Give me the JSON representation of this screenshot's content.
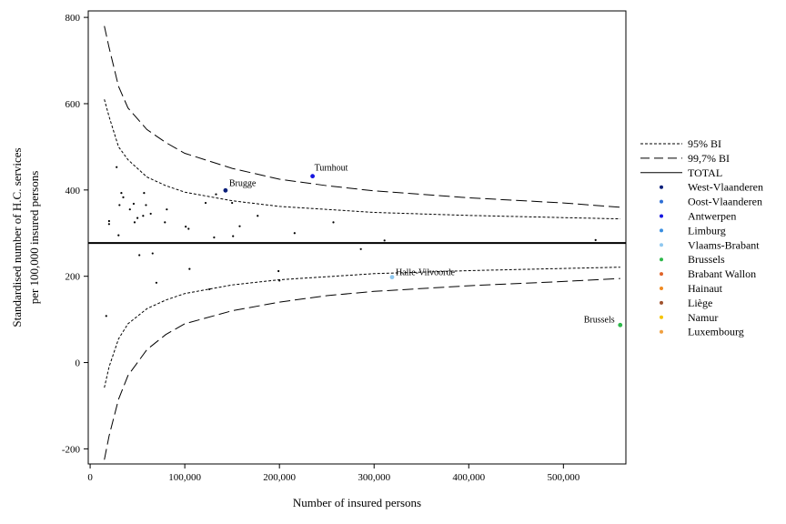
{
  "chart_data": {
    "type": "scatter",
    "title": "",
    "xlabel": "Number of insured persons",
    "ylabel_lines": [
      "Standardised number of H.C. services",
      "per 100,000 insured persons"
    ],
    "xlim": [
      -2000,
      566000
    ],
    "ylim": [
      -235,
      815
    ],
    "xticks": [
      0,
      100000,
      200000,
      300000,
      400000,
      500000
    ],
    "xtick_labels": [
      "0",
      "100,000",
      "200,000",
      "300,000",
      "400,000",
      "500,000"
    ],
    "yticks": [
      -200,
      0,
      200,
      400,
      600,
      800
    ],
    "ytick_labels": [
      "-200",
      "0",
      "200",
      "400",
      "600",
      "800"
    ],
    "grid": false,
    "legend_position": "right",
    "total": 277,
    "legend": [
      {
        "label": "95% BI",
        "kind": "dotted",
        "color": "#000000"
      },
      {
        "label": "99,7% BI",
        "kind": "dashed",
        "color": "#000000"
      },
      {
        "label": "TOTAL",
        "kind": "solid",
        "color": "#000000"
      },
      {
        "label": "West-Vlaanderen",
        "kind": "dot",
        "color": "#0a1f7a"
      },
      {
        "label": "Oost-Vlaanderen",
        "kind": "dot",
        "color": "#2e6fd6"
      },
      {
        "label": "Antwerpen",
        "kind": "dot",
        "color": "#1515e0"
      },
      {
        "label": "Limburg",
        "kind": "dot",
        "color": "#3a8fe0"
      },
      {
        "label": "Vlaams-Brabant",
        "kind": "dot",
        "color": "#8fc8f0"
      },
      {
        "label": "Brussels",
        "kind": "dot",
        "color": "#2db84a"
      },
      {
        "label": "Brabant Wallon",
        "kind": "dot",
        "color": "#e0642a"
      },
      {
        "label": "Hainaut",
        "kind": "dot",
        "color": "#f08a20"
      },
      {
        "label": "Liège",
        "kind": "dot",
        "color": "#a0522d"
      },
      {
        "label": "Namur",
        "kind": "dot",
        "color": "#f5c400"
      },
      {
        "label": "Luxembourg",
        "kind": "dot",
        "color": "#f0a040"
      }
    ],
    "limits": [
      {
        "name": "95% BI upper",
        "style": "dotted",
        "points": [
          [
            15000,
            610
          ],
          [
            20000,
            570
          ],
          [
            30000,
            500
          ],
          [
            40000,
            470
          ],
          [
            60000,
            430
          ],
          [
            80000,
            410
          ],
          [
            100000,
            395
          ],
          [
            150000,
            375
          ],
          [
            200000,
            362
          ],
          [
            250000,
            355
          ],
          [
            300000,
            348
          ],
          [
            400000,
            341
          ],
          [
            500000,
            336
          ],
          [
            560000,
            333
          ]
        ]
      },
      {
        "name": "95% BI lower",
        "style": "dotted",
        "points": [
          [
            15000,
            -58
          ],
          [
            20000,
            -10
          ],
          [
            30000,
            55
          ],
          [
            40000,
            90
          ],
          [
            60000,
            125
          ],
          [
            80000,
            145
          ],
          [
            100000,
            160
          ],
          [
            150000,
            180
          ],
          [
            200000,
            192
          ],
          [
            250000,
            199
          ],
          [
            300000,
            206
          ],
          [
            400000,
            213
          ],
          [
            500000,
            218
          ],
          [
            560000,
            221
          ]
        ]
      },
      {
        "name": "99,7% BI upper",
        "style": "dashed",
        "points": [
          [
            15000,
            780
          ],
          [
            20000,
            730
          ],
          [
            30000,
            640
          ],
          [
            40000,
            590
          ],
          [
            60000,
            540
          ],
          [
            80000,
            510
          ],
          [
            100000,
            485
          ],
          [
            150000,
            450
          ],
          [
            200000,
            425
          ],
          [
            250000,
            410
          ],
          [
            300000,
            398
          ],
          [
            400000,
            382
          ],
          [
            500000,
            370
          ],
          [
            560000,
            360
          ]
        ]
      },
      {
        "name": "99,7% BI lower",
        "style": "dashed",
        "points": [
          [
            15000,
            -225
          ],
          [
            20000,
            -170
          ],
          [
            30000,
            -85
          ],
          [
            40000,
            -30
          ],
          [
            60000,
            30
          ],
          [
            80000,
            65
          ],
          [
            100000,
            90
          ],
          [
            150000,
            120
          ],
          [
            200000,
            140
          ],
          [
            250000,
            155
          ],
          [
            300000,
            165
          ],
          [
            400000,
            178
          ],
          [
            500000,
            188
          ],
          [
            560000,
            195
          ]
        ]
      }
    ],
    "points": [
      {
        "x": 17000,
        "y": 108,
        "c": "#000000"
      },
      {
        "x": 20000,
        "y": 328,
        "c": "#000000"
      },
      {
        "x": 20000,
        "y": 321,
        "c": "#000000"
      },
      {
        "x": 28000,
        "y": 453,
        "c": "#000000"
      },
      {
        "x": 30000,
        "y": 295,
        "c": "#000000"
      },
      {
        "x": 31000,
        "y": 365,
        "c": "#000000"
      },
      {
        "x": 33000,
        "y": 393,
        "c": "#000000"
      },
      {
        "x": 35000,
        "y": 383,
        "c": "#000000"
      },
      {
        "x": 42000,
        "y": 355,
        "c": "#000000"
      },
      {
        "x": 46000,
        "y": 368,
        "c": "#000000"
      },
      {
        "x": 47000,
        "y": 325,
        "c": "#000000"
      },
      {
        "x": 50000,
        "y": 335,
        "c": "#000000"
      },
      {
        "x": 52000,
        "y": 249,
        "c": "#000000"
      },
      {
        "x": 56000,
        "y": 340,
        "c": "#000000"
      },
      {
        "x": 57000,
        "y": 393,
        "c": "#000000"
      },
      {
        "x": 59000,
        "y": 365,
        "c": "#000000"
      },
      {
        "x": 64000,
        "y": 345,
        "c": "#000000"
      },
      {
        "x": 66000,
        "y": 253,
        "c": "#000000"
      },
      {
        "x": 70000,
        "y": 185,
        "c": "#000000"
      },
      {
        "x": 79000,
        "y": 325,
        "c": "#000000"
      },
      {
        "x": 81000,
        "y": 355,
        "c": "#000000"
      },
      {
        "x": 101000,
        "y": 315,
        "c": "#000000"
      },
      {
        "x": 104000,
        "y": 310,
        "c": "#000000"
      },
      {
        "x": 105000,
        "y": 217,
        "c": "#000000"
      },
      {
        "x": 122000,
        "y": 370,
        "c": "#000000"
      },
      {
        "x": 126000,
        "y": 170,
        "c": "#000000"
      },
      {
        "x": 131000,
        "y": 290,
        "c": "#000000"
      },
      {
        "x": 133000,
        "y": 390,
        "c": "#000000"
      },
      {
        "x": 150000,
        "y": 370,
        "c": "#000000"
      },
      {
        "x": 151000,
        "y": 293,
        "c": "#000000"
      },
      {
        "x": 158000,
        "y": 316,
        "c": "#000000"
      },
      {
        "x": 177000,
        "y": 340,
        "c": "#000000"
      },
      {
        "x": 199000,
        "y": 212,
        "c": "#000000"
      },
      {
        "x": 200000,
        "y": 190,
        "c": "#000000"
      },
      {
        "x": 216000,
        "y": 300,
        "c": "#000000"
      },
      {
        "x": 257000,
        "y": 325,
        "c": "#000000"
      },
      {
        "x": 286000,
        "y": 263,
        "c": "#000000"
      },
      {
        "x": 311000,
        "y": 283,
        "c": "#000000"
      },
      {
        "x": 534000,
        "y": 284,
        "c": "#000000"
      },
      {
        "x": 143000,
        "y": 399,
        "c": "#0a1f7a",
        "label": "Brugge",
        "lx": 4,
        "ly": -5
      },
      {
        "x": 235000,
        "y": 432,
        "c": "#1515e0",
        "label": "Turnhout",
        "lx": 2,
        "ly": -6
      },
      {
        "x": 319000,
        "y": 198,
        "c": "#8fc8f0",
        "label": "Halle-Vilvoorde",
        "lx": 4,
        "ly": -2
      },
      {
        "x": 560000,
        "y": 87,
        "c": "#2db84a",
        "label": "Brussels",
        "lx": -40,
        "ly": -3
      }
    ]
  }
}
